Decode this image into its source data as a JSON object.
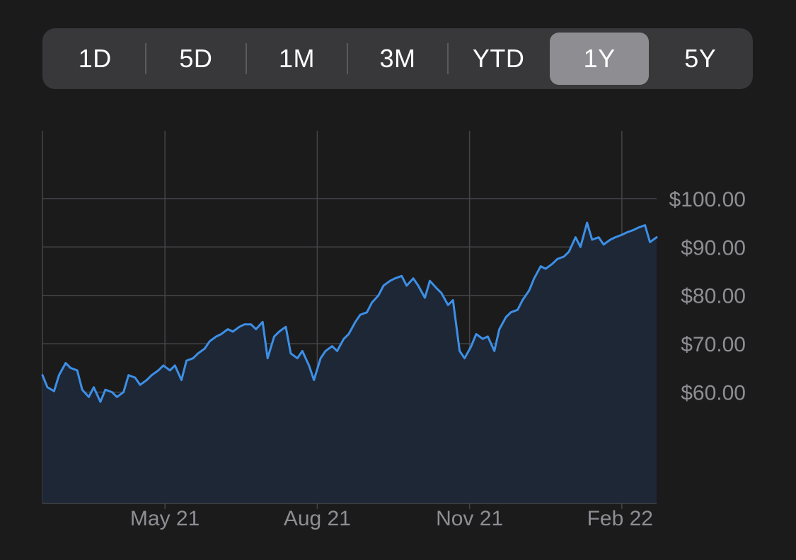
{
  "range_selector": {
    "options": [
      "1D",
      "5D",
      "1M",
      "3M",
      "YTD",
      "1Y",
      "5Y"
    ],
    "selected": "1Y"
  },
  "colors": {
    "background": "#1b1b1c",
    "line": "#3d8fe6",
    "area_fill": "#1d2735",
    "grid": "#444448",
    "label": "#8e8e93",
    "selector_bg": "#38383b",
    "selector_selected": "#8d8d92"
  },
  "chart_data": {
    "type": "area",
    "title": "",
    "xlabel": "",
    "ylabel": "",
    "y_tick_labels": [
      "$100.00",
      "$90.00",
      "$80.00",
      "$70.00",
      "$60.00"
    ],
    "y_ticks": [
      100,
      90,
      80,
      70,
      60
    ],
    "ylim": [
      37,
      114
    ],
    "x_tick_labels": [
      "May 21",
      "Aug 21",
      "Nov 21",
      "Feb 22"
    ],
    "x_ticks": [
      "2021-05-01",
      "2021-08-01",
      "2021-11-01",
      "2022-02-01"
    ],
    "x_range": [
      "2021-02-16",
      "2022-02-22"
    ],
    "grid": true,
    "series": [
      {
        "x": [
          "2021-02-16",
          "2021-02-19",
          "2021-02-23",
          "2021-02-26",
          "2021-03-02",
          "2021-03-05",
          "2021-03-09",
          "2021-03-12",
          "2021-03-16",
          "2021-03-19",
          "2021-03-23",
          "2021-03-26",
          "2021-03-30",
          "2021-04-02",
          "2021-04-06",
          "2021-04-09",
          "2021-04-13",
          "2021-04-16",
          "2021-04-20",
          "2021-04-23",
          "2021-04-27",
          "2021-04-30",
          "2021-05-04",
          "2021-05-07",
          "2021-05-11",
          "2021-05-14",
          "2021-05-18",
          "2021-05-21",
          "2021-05-25",
          "2021-05-28",
          "2021-06-01",
          "2021-06-04",
          "2021-06-08",
          "2021-06-11",
          "2021-06-15",
          "2021-06-18",
          "2021-06-22",
          "2021-06-25",
          "2021-06-29",
          "2021-07-02",
          "2021-07-06",
          "2021-07-09",
          "2021-07-13",
          "2021-07-16",
          "2021-07-20",
          "2021-07-23",
          "2021-07-27",
          "2021-07-30",
          "2021-08-03",
          "2021-08-06",
          "2021-08-10",
          "2021-08-13",
          "2021-08-17",
          "2021-08-20",
          "2021-08-24",
          "2021-08-27",
          "2021-08-31",
          "2021-09-03",
          "2021-09-07",
          "2021-09-10",
          "2021-09-14",
          "2021-09-17",
          "2021-09-21",
          "2021-09-24",
          "2021-09-28",
          "2021-10-01",
          "2021-10-05",
          "2021-10-08",
          "2021-10-12",
          "2021-10-15",
          "2021-10-19",
          "2021-10-22",
          "2021-10-26",
          "2021-10-29",
          "2021-11-02",
          "2021-11-05",
          "2021-11-09",
          "2021-11-12",
          "2021-11-16",
          "2021-11-19",
          "2021-11-23",
          "2021-11-26",
          "2021-11-30",
          "2021-12-03",
          "2021-12-07",
          "2021-12-10",
          "2021-12-14",
          "2021-12-17",
          "2021-12-21",
          "2021-12-24",
          "2021-12-28",
          "2021-12-31",
          "2022-01-04",
          "2022-01-07",
          "2022-01-11",
          "2022-01-14",
          "2022-01-18",
          "2022-01-21",
          "2022-01-25",
          "2022-01-28",
          "2022-02-01",
          "2022-02-04",
          "2022-02-08",
          "2022-02-11",
          "2022-02-15",
          "2022-02-18",
          "2022-02-22"
        ],
        "y": [
          63.5,
          61.0,
          60.2,
          63.5,
          66.0,
          65.0,
          64.5,
          60.5,
          59.0,
          61.0,
          58.0,
          60.5,
          60.0,
          59.0,
          60.0,
          63.5,
          63.0,
          61.5,
          62.5,
          63.5,
          64.5,
          65.5,
          64.5,
          65.5,
          62.5,
          66.5,
          67.0,
          68.0,
          69.0,
          70.5,
          71.5,
          72.0,
          73.0,
          72.5,
          73.5,
          74.0,
          74.0,
          73.0,
          74.5,
          67.0,
          71.5,
          72.5,
          73.5,
          68.0,
          67.0,
          68.5,
          65.5,
          62.5,
          67.0,
          68.5,
          69.5,
          68.5,
          71.0,
          72.0,
          74.5,
          76.0,
          76.5,
          78.5,
          80.0,
          82.0,
          83.0,
          83.5,
          84.0,
          82.0,
          83.5,
          82.0,
          79.5,
          83.0,
          81.5,
          80.5,
          78.0,
          79.0,
          68.5,
          67.0,
          69.5,
          72.0,
          71.0,
          71.5,
          68.5,
          73.0,
          75.5,
          76.5,
          77.0,
          79.0,
          81.0,
          83.5,
          86.0,
          85.5,
          86.5,
          87.5,
          88.0,
          89.0,
          92.0,
          90.0,
          95.0,
          91.5,
          92.0,
          90.5,
          91.5,
          92.0,
          92.5,
          93.0,
          93.5,
          94.0,
          94.5,
          91.0,
          92.0
        ]
      }
    ]
  }
}
